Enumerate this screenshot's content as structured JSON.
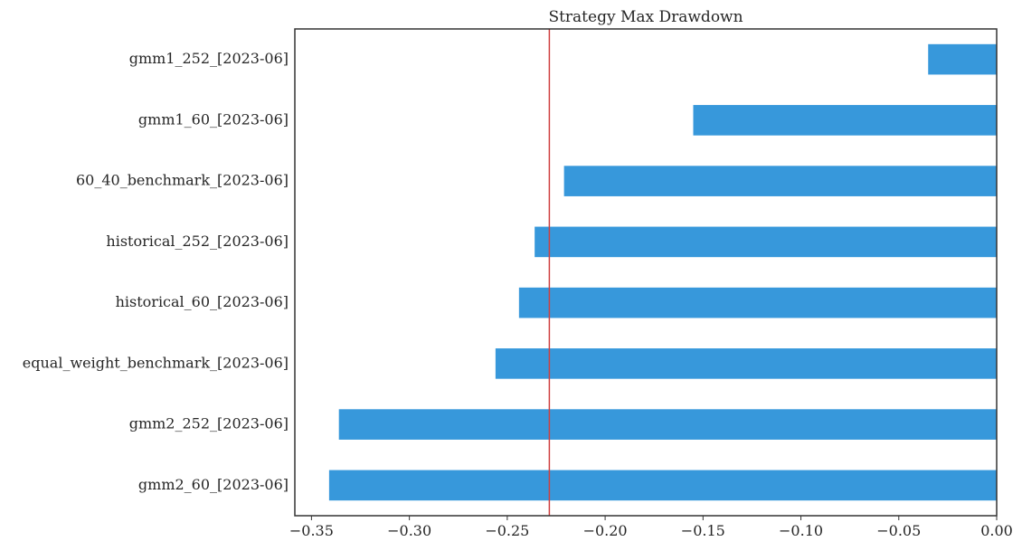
{
  "chart_data": {
    "type": "bar",
    "orientation": "horizontal",
    "title": "Strategy Max Drawdown",
    "xlabel": "",
    "ylabel": "",
    "categories": [
      "gmm1_252_[2023-06]",
      "gmm1_60_[2023-06]",
      "60_40_benchmark_[2023-06]",
      "historical_252_[2023-06]",
      "historical_60_[2023-06]",
      "equal_weight_benchmark_[2023-06]",
      "gmm2_252_[2023-06]",
      "gmm2_60_[2023-06]"
    ],
    "values": [
      -0.035,
      -0.155,
      -0.221,
      -0.236,
      -0.244,
      -0.256,
      -0.336,
      -0.341
    ],
    "xlim": [
      -0.3585,
      0.0
    ],
    "xticks": [
      -0.35,
      -0.3,
      -0.25,
      -0.2,
      -0.15,
      -0.1,
      -0.05,
      0.0
    ],
    "xtick_labels": [
      "−0.35",
      "−0.30",
      "−0.25",
      "−0.20",
      "−0.15",
      "−0.10",
      "−0.05",
      "0.00"
    ],
    "reference_line": {
      "x": -0.2285,
      "color": "#d04040"
    },
    "bar_color": "#3798db",
    "grid": false,
    "legend": "none"
  }
}
